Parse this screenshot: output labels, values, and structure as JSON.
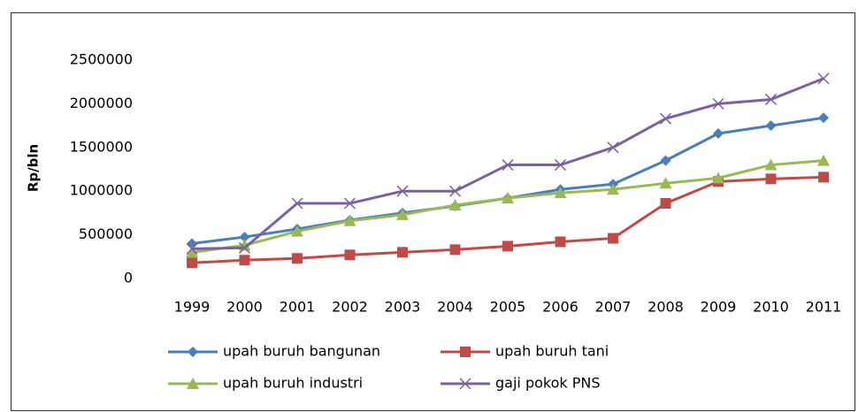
{
  "chart_data": {
    "type": "line",
    "y_label": "Rp/bln",
    "categories": [
      "1999",
      "2000",
      "2001",
      "2002",
      "2003",
      "2004",
      "2005",
      "2006",
      "2007",
      "2008",
      "2009",
      "2010",
      "2011"
    ],
    "series": [
      {
        "name": "upah buruh bangunan",
        "color": "#4a7ebb",
        "marker": "diamond",
        "values": [
          400000,
          475000,
          567000,
          668000,
          750000,
          830000,
          920000,
          1020000,
          1080000,
          1350000,
          1660000,
          1750000,
          1840000
        ]
      },
      {
        "name": "upah buruh tani",
        "color": "#be4b48",
        "marker": "square",
        "values": [
          180000,
          210000,
          230000,
          270000,
          300000,
          330000,
          370000,
          420000,
          460000,
          860000,
          1110000,
          1140000,
          1160000
        ]
      },
      {
        "name": "upah buruh industri",
        "color": "#98b954",
        "marker": "triangle",
        "values": [
          300000,
          380000,
          540000,
          660000,
          730000,
          840000,
          920000,
          980000,
          1020000,
          1090000,
          1150000,
          1300000,
          1350000
        ]
      },
      {
        "name": "gaji pokok PNS",
        "color": "#7d60a0",
        "marker": "cross",
        "values": [
          340000,
          350000,
          860000,
          860000,
          1000000,
          1000000,
          1300000,
          1300000,
          1500000,
          1830000,
          2000000,
          2050000,
          2290000
        ]
      }
    ],
    "ylim": [
      0,
      2500000
    ],
    "yticks": [
      0,
      500000,
      1000000,
      1500000,
      2000000,
      2500000
    ],
    "grid": false
  }
}
